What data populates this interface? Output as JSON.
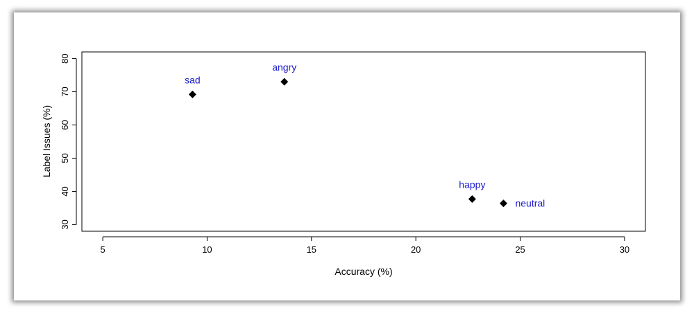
{
  "chart_data": {
    "type": "scatter",
    "xlabel": "Accuracy (%)",
    "ylabel": "Label Issues (%)",
    "xlim": [
      4,
      31
    ],
    "ylim": [
      28,
      82
    ],
    "xticks": [
      5,
      10,
      15,
      20,
      25,
      30
    ],
    "yticks": [
      30,
      40,
      50,
      60,
      70,
      80
    ],
    "grid": false,
    "marker": "diamond",
    "marker_color": "#000000",
    "label_color": "#1a1acc",
    "points": [
      {
        "label": "sad",
        "x": 9.3,
        "y": 69.2,
        "label_pos": "above"
      },
      {
        "label": "angry",
        "x": 13.7,
        "y": 73.0,
        "label_pos": "above"
      },
      {
        "label": "happy",
        "x": 22.7,
        "y": 37.7,
        "label_pos": "above"
      },
      {
        "label": "neutral",
        "x": 24.2,
        "y": 36.4,
        "label_pos": "right"
      }
    ]
  }
}
